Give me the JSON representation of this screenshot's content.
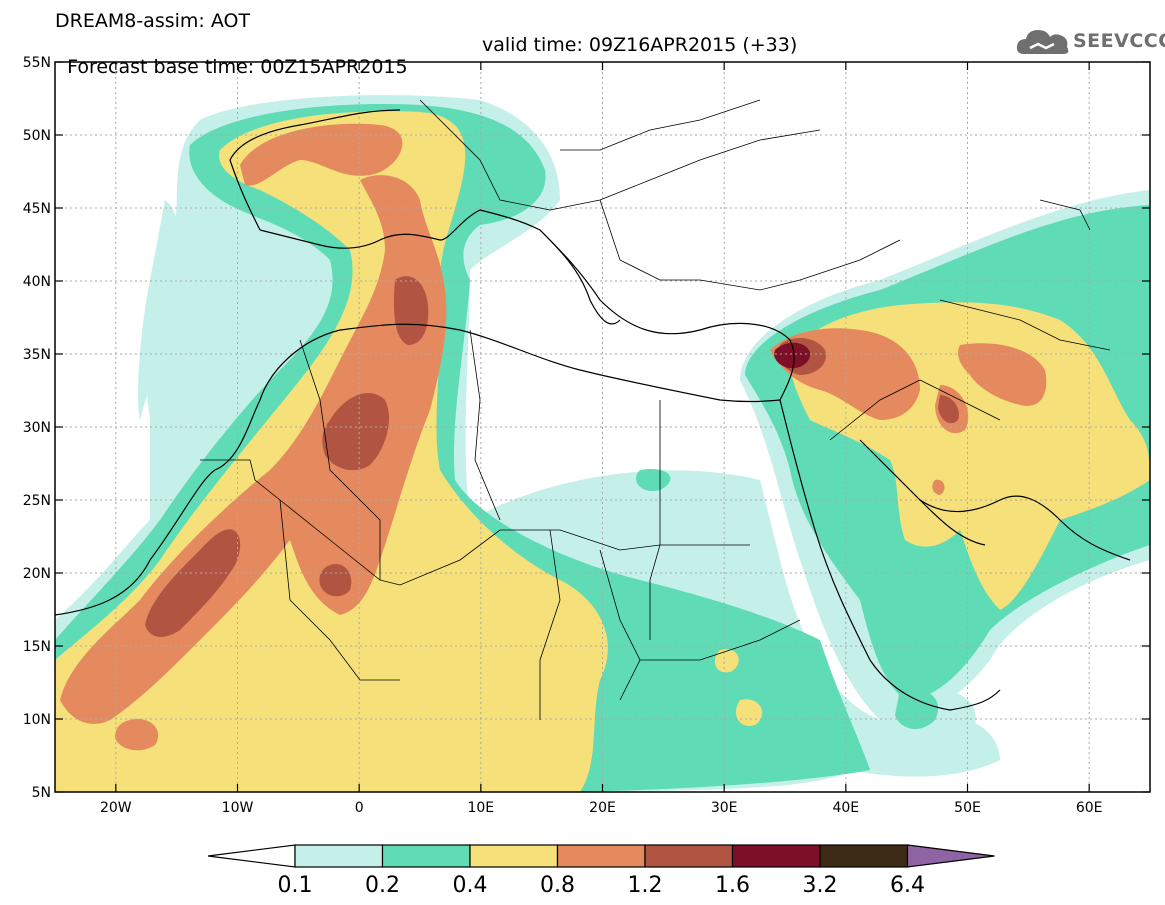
{
  "header": {
    "line1": "DREAM8-assim: AOT",
    "base": "Forecast base time: 00Z15APR2015",
    "valid": "valid time: 09Z16APR2015 (+33)"
  },
  "logo": {
    "text": "SEEVCCC",
    "icon": "cloud-icon"
  },
  "map": {
    "variable": "AOT",
    "lon_range": [
      -25,
      65
    ],
    "lat_range": [
      5,
      55
    ],
    "grid": true,
    "lat_labels": [
      "55N",
      "50N",
      "45N",
      "40N",
      "35N",
      "30N",
      "25N",
      "20N",
      "15N",
      "10N",
      "5N"
    ],
    "lon_labels": [
      "20W",
      "10W",
      "0",
      "10E",
      "20E",
      "30E",
      "40E",
      "50E",
      "60E"
    ]
  },
  "colorbar": {
    "levels": [
      "0.1",
      "0.2",
      "0.4",
      "0.8",
      "1.2",
      "1.6",
      "3.2",
      "6.4"
    ],
    "colors": [
      "#ffffff",
      "#c4f0e9",
      "#5fdcb6",
      "#f5e07a",
      "#e48a5e",
      "#b15542",
      "#7e0f28",
      "#3d2a14",
      "#8e64a4"
    ]
  }
}
